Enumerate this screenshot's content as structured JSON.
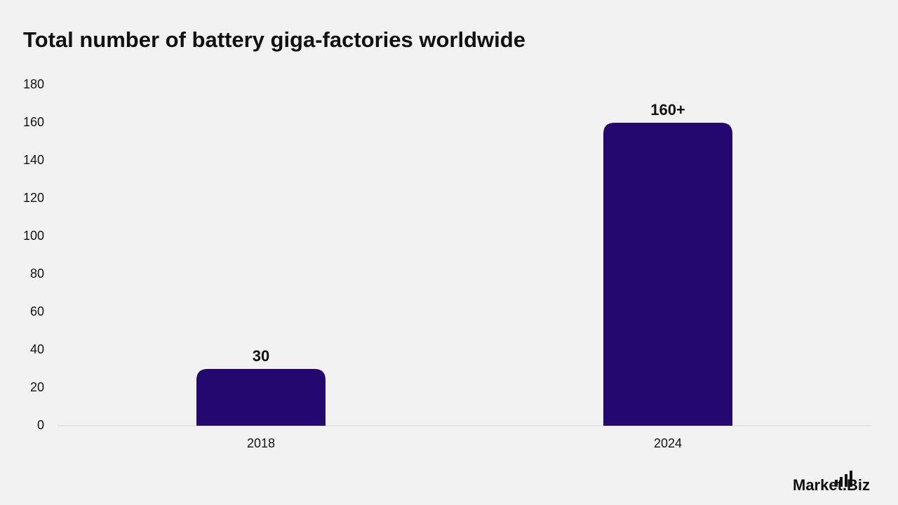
{
  "chart_data": {
    "type": "bar",
    "title": "Total number of battery giga-factories worldwide",
    "categories": [
      "2018",
      "2024"
    ],
    "values": [
      30,
      160
    ],
    "value_labels": [
      "30",
      "160+"
    ],
    "color": "#24076f",
    "ylim": [
      0,
      180
    ],
    "yticks": [
      0,
      20,
      40,
      60,
      80,
      100,
      120,
      140,
      160,
      180
    ],
    "grid": false
  },
  "footer": {
    "logo": "Market.Biz"
  }
}
